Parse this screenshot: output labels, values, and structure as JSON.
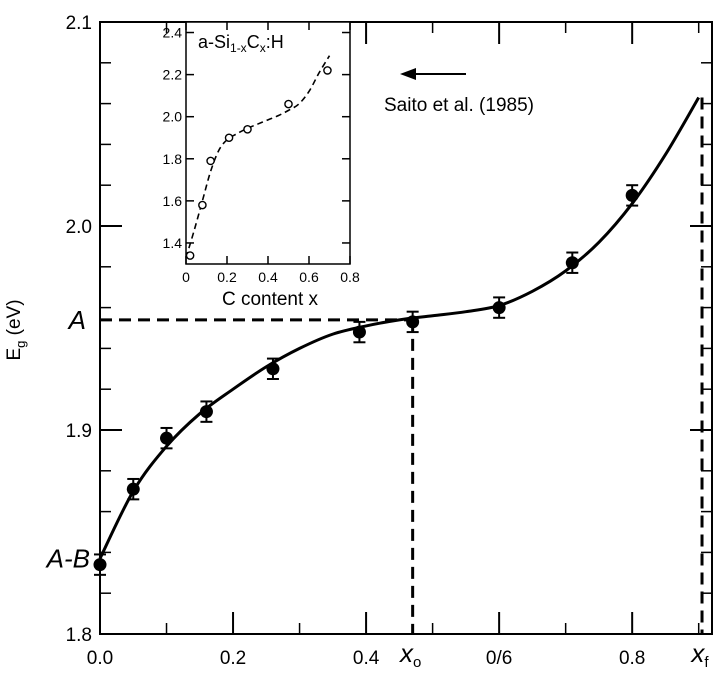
{
  "chart_data": [
    {
      "type": "scatter",
      "title": "",
      "xlabel": "",
      "ylabel_base": "E",
      "ylabel_sub": "g",
      "ylabel_unit": " (eV)",
      "xlim": [
        0.0,
        0.92
      ],
      "ylim": [
        1.8,
        2.1
      ],
      "x_ticks": [
        {
          "value": 0.0,
          "label": "0.0"
        },
        {
          "value": 0.2,
          "label": "0.2"
        },
        {
          "value": 0.4,
          "label": "0.4"
        },
        {
          "value": 0.6,
          "label": "0/6"
        },
        {
          "value": 0.8,
          "label": "0.8"
        }
      ],
      "y_ticks": [
        {
          "value": 1.8,
          "label": "1.8"
        },
        {
          "value": 1.9,
          "label": "1.9"
        },
        {
          "value": 2.0,
          "label": "2.0"
        },
        {
          "value": 2.1,
          "label": "2.1"
        }
      ],
      "points": [
        {
          "x": 0.0,
          "y": 1.834,
          "err": 0.005
        },
        {
          "x": 0.05,
          "y": 1.871,
          "err": 0.005
        },
        {
          "x": 0.1,
          "y": 1.896,
          "err": 0.005
        },
        {
          "x": 0.16,
          "y": 1.909,
          "err": 0.005
        },
        {
          "x": 0.26,
          "y": 1.93,
          "err": 0.005
        },
        {
          "x": 0.39,
          "y": 1.948,
          "err": 0.005
        },
        {
          "x": 0.47,
          "y": 1.953,
          "err": 0.005
        },
        {
          "x": 0.6,
          "y": 1.96,
          "err": 0.005
        },
        {
          "x": 0.71,
          "y": 1.982,
          "err": 0.005
        },
        {
          "x": 0.8,
          "y": 2.015,
          "err": 0.005
        }
      ],
      "fit_curve": {
        "x": [
          0.0,
          0.05,
          0.1,
          0.15,
          0.2,
          0.25,
          0.3,
          0.35,
          0.4,
          0.45,
          0.5,
          0.55,
          0.6,
          0.65,
          0.7,
          0.75,
          0.8,
          0.85,
          0.9
        ],
        "y": [
          1.837,
          1.87,
          1.892,
          1.908,
          1.92,
          1.931,
          1.94,
          1.947,
          1.951,
          1.954,
          1.956,
          1.958,
          1.961,
          1.968,
          1.978,
          1.992,
          2.011,
          2.035,
          2.063
        ]
      },
      "reference_lines": {
        "A_level": 1.954,
        "AminusB_level": 1.837,
        "x_o": 0.47,
        "x_f": 0.905,
        "x_f_top": 2.063
      },
      "annotations": {
        "A": "A",
        "A_minus_B": "A-B",
        "x_o_base": "x",
        "x_o_sub": "o",
        "x_f_base": "x",
        "x_f_sub": "f",
        "reference": "Saito et al. (1985)"
      }
    },
    {
      "type": "scatter",
      "title_parts": [
        "a-Si",
        "1-x",
        "C",
        "x",
        ":H"
      ],
      "xlabel": "C content x",
      "xlim": [
        0,
        0.8
      ],
      "ylim": [
        1.3,
        2.45
      ],
      "x_ticks": [
        {
          "value": 0,
          "label": "0"
        },
        {
          "value": 0.2,
          "label": "0.2"
        },
        {
          "value": 0.4,
          "label": "0.4"
        },
        {
          "value": 0.6,
          "label": "0.6"
        },
        {
          "value": 0.8,
          "label": "0.8"
        }
      ],
      "y_ticks": [
        {
          "value": 1.4,
          "label": "1.4"
        },
        {
          "value": 1.6,
          "label": "1.6"
        },
        {
          "value": 1.8,
          "label": "1.8"
        },
        {
          "value": 2.0,
          "label": "2.0"
        },
        {
          "value": 2.2,
          "label": "2.2"
        },
        {
          "value": 2.4,
          "label": "2.4"
        }
      ],
      "points": [
        {
          "x": 0.02,
          "y": 1.34
        },
        {
          "x": 0.08,
          "y": 1.58
        },
        {
          "x": 0.12,
          "y": 1.79
        },
        {
          "x": 0.21,
          "y": 1.9
        },
        {
          "x": 0.3,
          "y": 1.94
        },
        {
          "x": 0.5,
          "y": 2.06
        },
        {
          "x": 0.69,
          "y": 2.22
        }
      ],
      "dashed_curve": {
        "x": [
          0.0,
          0.04,
          0.08,
          0.12,
          0.16,
          0.2,
          0.25,
          0.3,
          0.35,
          0.4,
          0.45,
          0.5,
          0.55,
          0.6,
          0.65,
          0.7
        ],
        "y": [
          1.33,
          1.46,
          1.6,
          1.74,
          1.84,
          1.89,
          1.92,
          1.945,
          1.965,
          1.985,
          2.005,
          2.03,
          2.06,
          2.12,
          2.21,
          2.29
        ]
      }
    }
  ]
}
